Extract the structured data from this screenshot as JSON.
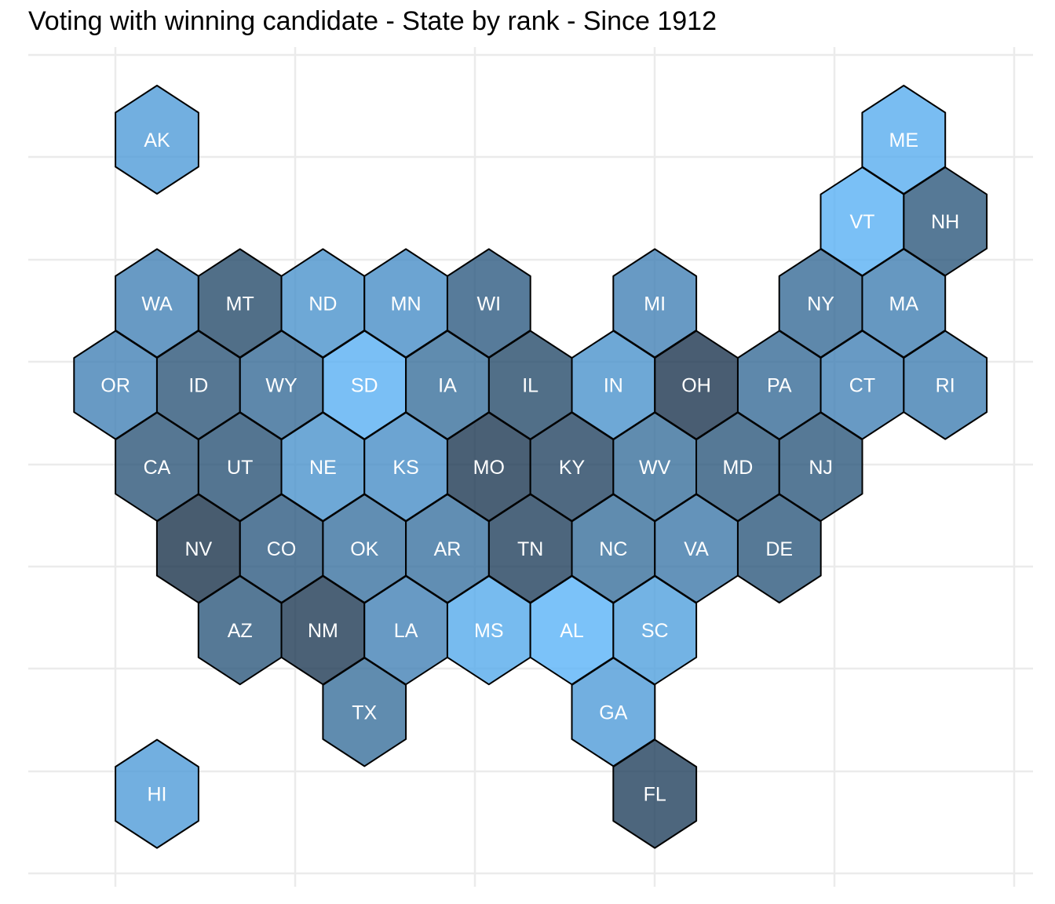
{
  "chart_data": {
    "type": "hexmap",
    "title": "Voting with winning candidate - State by rank - Since 1912",
    "grid": true,
    "legend": "none",
    "color_scale": {
      "light": "#56b1f7",
      "dark": "#132b43"
    },
    "states": [
      {
        "abbr": "AK",
        "col": 0,
        "row": 0,
        "shade": 0.18
      },
      {
        "abbr": "ME",
        "col": 9,
        "row": 0,
        "shade": 0.05
      },
      {
        "abbr": "VT",
        "col": 8.5,
        "row": 1,
        "shade": 0.02
      },
      {
        "abbr": "NH",
        "col": 9.5,
        "row": 1,
        "shade": 0.7
      },
      {
        "abbr": "WA",
        "col": 0,
        "row": 2,
        "shade": 0.38
      },
      {
        "abbr": "MT",
        "col": 1,
        "row": 2,
        "shade": 0.8
      },
      {
        "abbr": "ND",
        "col": 2,
        "row": 2,
        "shade": 0.25
      },
      {
        "abbr": "MN",
        "col": 3,
        "row": 2,
        "shade": 0.28
      },
      {
        "abbr": "WI",
        "col": 4,
        "row": 2,
        "shade": 0.68
      },
      {
        "abbr": "MI",
        "col": 6,
        "row": 2,
        "shade": 0.38
      },
      {
        "abbr": "NY",
        "col": 8,
        "row": 2,
        "shade": 0.55
      },
      {
        "abbr": "MA",
        "col": 9,
        "row": 2,
        "shade": 0.4
      },
      {
        "abbr": "OR",
        "col": -0.5,
        "row": 3,
        "shade": 0.38
      },
      {
        "abbr": "ID",
        "col": 0.5,
        "row": 3,
        "shade": 0.72
      },
      {
        "abbr": "WY",
        "col": 1.5,
        "row": 3,
        "shade": 0.55
      },
      {
        "abbr": "SD",
        "col": 2.5,
        "row": 3,
        "shade": 0.03
      },
      {
        "abbr": "IA",
        "col": 3.5,
        "row": 3,
        "shade": 0.52
      },
      {
        "abbr": "IL",
        "col": 4.5,
        "row": 3,
        "shade": 0.8
      },
      {
        "abbr": "IN",
        "col": 5.5,
        "row": 3,
        "shade": 0.25
      },
      {
        "abbr": "OH",
        "col": 6.5,
        "row": 3,
        "shade": 0.96
      },
      {
        "abbr": "PA",
        "col": 7.5,
        "row": 3,
        "shade": 0.55
      },
      {
        "abbr": "CT",
        "col": 8.5,
        "row": 3,
        "shade": 0.38
      },
      {
        "abbr": "RI",
        "col": 9.5,
        "row": 3,
        "shade": 0.4
      },
      {
        "abbr": "CA",
        "col": 0,
        "row": 4,
        "shade": 0.72
      },
      {
        "abbr": "UT",
        "col": 1,
        "row": 4,
        "shade": 0.74
      },
      {
        "abbr": "NE",
        "col": 2,
        "row": 4,
        "shade": 0.25
      },
      {
        "abbr": "KS",
        "col": 3,
        "row": 4,
        "shade": 0.28
      },
      {
        "abbr": "MO",
        "col": 4,
        "row": 4,
        "shade": 0.94
      },
      {
        "abbr": "KY",
        "col": 5,
        "row": 4,
        "shade": 0.85
      },
      {
        "abbr": "WV",
        "col": 6,
        "row": 4,
        "shade": 0.52
      },
      {
        "abbr": "MD",
        "col": 7,
        "row": 4,
        "shade": 0.7
      },
      {
        "abbr": "NJ",
        "col": 8,
        "row": 4,
        "shade": 0.7
      },
      {
        "abbr": "NV",
        "col": 0.5,
        "row": 5,
        "shade": 0.98
      },
      {
        "abbr": "CO",
        "col": 1.5,
        "row": 5,
        "shade": 0.68
      },
      {
        "abbr": "OK",
        "col": 2.5,
        "row": 5,
        "shade": 0.5
      },
      {
        "abbr": "AR",
        "col": 3.5,
        "row": 5,
        "shade": 0.5
      },
      {
        "abbr": "TN",
        "col": 4.5,
        "row": 5,
        "shade": 0.88
      },
      {
        "abbr": "NC",
        "col": 5.5,
        "row": 5,
        "shade": 0.52
      },
      {
        "abbr": "VA",
        "col": 6.5,
        "row": 5,
        "shade": 0.45
      },
      {
        "abbr": "DE",
        "col": 7.5,
        "row": 5,
        "shade": 0.7
      },
      {
        "abbr": "AZ",
        "col": 1,
        "row": 6,
        "shade": 0.7
      },
      {
        "abbr": "NM",
        "col": 2,
        "row": 6,
        "shade": 0.93
      },
      {
        "abbr": "LA",
        "col": 3,
        "row": 6,
        "shade": 0.38
      },
      {
        "abbr": "MS",
        "col": 4,
        "row": 6,
        "shade": 0.07
      },
      {
        "abbr": "AL",
        "col": 5,
        "row": 6,
        "shade": 0.0
      },
      {
        "abbr": "SC",
        "col": 6,
        "row": 6,
        "shade": 0.15
      },
      {
        "abbr": "TX",
        "col": 2.5,
        "row": 7,
        "shade": 0.52
      },
      {
        "abbr": "GA",
        "col": 5.5,
        "row": 7,
        "shade": 0.18
      },
      {
        "abbr": "HI",
        "col": 0,
        "row": 8,
        "shade": 0.18
      },
      {
        "abbr": "FL",
        "col": 6,
        "row": 8,
        "shade": 0.88
      }
    ]
  }
}
